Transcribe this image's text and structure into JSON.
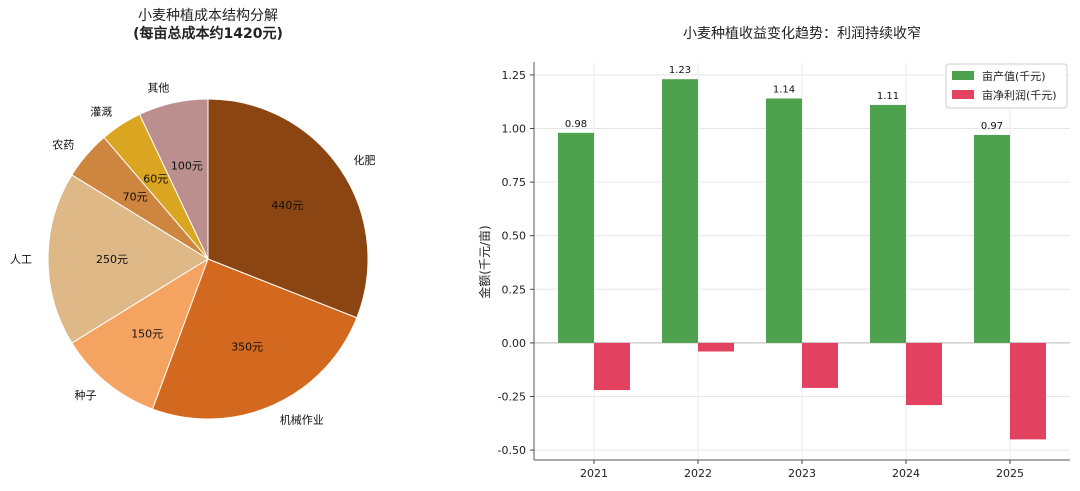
{
  "chart_data": [
    {
      "type": "pie",
      "title": "小麦种植成本结构分解",
      "subtitle": "(每亩总成本约1420元)",
      "slices": [
        {
          "label": "其他",
          "value": 100,
          "value_label": "100元",
          "color": "#bc8f8f"
        },
        {
          "label": "灌溉",
          "value": 60,
          "value_label": "60元",
          "color": "#daa520"
        },
        {
          "label": "农药",
          "value": 70,
          "value_label": "70元",
          "color": "#cd853f"
        },
        {
          "label": "人工",
          "value": 250,
          "value_label": "250元",
          "color": "#deb887"
        },
        {
          "label": "种子",
          "value": 150,
          "value_label": "150元",
          "color": "#f4a460"
        },
        {
          "label": "机械作业",
          "value": 350,
          "value_label": "350元",
          "color": "#d2691e"
        },
        {
          "label": "化肥",
          "value": 440,
          "value_label": "440元",
          "color": "#8b4513"
        }
      ]
    },
    {
      "type": "bar",
      "title": "小麦种植收益变化趋势：利润持续收窄",
      "ylabel": "金额(千元/亩)",
      "xlabel": "",
      "categories": [
        "2021",
        "2022",
        "2023",
        "2024",
        "2025"
      ],
      "ylim": [
        -0.5,
        1.25
      ],
      "yticks": [
        "-0.50",
        "-0.25",
        "0.00",
        "0.25",
        "0.50",
        "0.75",
        "1.00",
        "1.25"
      ],
      "grid": true,
      "legend": "top-right",
      "series": [
        {
          "name": "亩产值(千元)",
          "values": [
            0.98,
            1.23,
            1.14,
            1.11,
            0.97
          ],
          "color": "#4ea24e",
          "data_labels": [
            "0.98",
            "1.23",
            "1.14",
            "1.11",
            "0.97"
          ]
        },
        {
          "name": "亩净利润(千元)",
          "values": [
            -0.22,
            -0.04,
            -0.21,
            -0.29,
            -0.45
          ],
          "color": "#e2425f"
        }
      ]
    }
  ]
}
